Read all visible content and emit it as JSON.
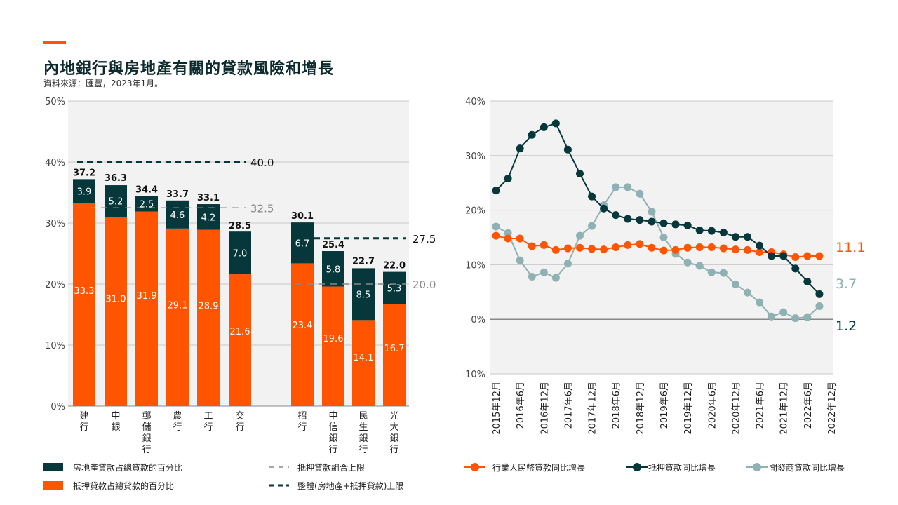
{
  "header": {
    "title": "內地銀行與房地產有關的貸款風險和增長",
    "source": "資料來源：匯豐，2023年1月。"
  },
  "colors": {
    "property_share": "#06373B",
    "mortgage_share": "#FF5500",
    "industry_loan_growth": "#FF5500",
    "mortgage_growth": "#06373B",
    "developer_loan_growth": "#8FB1B3",
    "grid": "#c8c8c8",
    "plot_bg": "#f2f2f2"
  },
  "chart_data": [
    {
      "type": "bar",
      "stacked": true,
      "ylim": [
        0,
        50
      ],
      "yticks": [
        "0%",
        "10%",
        "20%",
        "30%",
        "40%",
        "50%"
      ],
      "categories": [
        "建行",
        "中銀",
        "郵儲銀行",
        "農行",
        "工行",
        "交行",
        "招行",
        "中信銀行",
        "民生銀行",
        "光大銀行"
      ],
      "series": [
        {
          "name": "抵押貸款占總貸款的百分比",
          "values": [
            33.3,
            31.0,
            31.9,
            29.1,
            28.9,
            21.6,
            23.4,
            19.6,
            14.1,
            16.7
          ]
        },
        {
          "name": "房地產貸款占總貸款的百分比",
          "values": [
            3.9,
            5.2,
            2.5,
            4.6,
            4.2,
            7.0,
            6.7,
            5.8,
            8.5,
            5.3
          ]
        }
      ],
      "totals": [
        37.2,
        36.3,
        34.4,
        33.7,
        33.1,
        28.5,
        30.1,
        25.4,
        22.7,
        22.0
      ],
      "reference_lines": [
        {
          "name": "抵押貸款組合上限",
          "label": "32.5",
          "value": 32.5,
          "group": "large"
        },
        {
          "name": "整體(房地產+抵押貸款)上限",
          "label": "40.0",
          "value": 40.0,
          "group": "large"
        },
        {
          "name": "抵押貸款組合上限",
          "label": "20.0",
          "value": 20.0,
          "group": "mid"
        },
        {
          "name": "整體(房地產+抵押貸款)上限",
          "label": "27.5",
          "value": 27.5,
          "group": "mid"
        }
      ],
      "legend": [
        "房地產貸款占總貸款的百分比",
        "抵押貸款占總貸款的百分比",
        "抵押貸款組合上限",
        "整體(房地產+抵押貸款)上限"
      ]
    },
    {
      "type": "line",
      "ylim": [
        -10,
        40
      ],
      "yticks": [
        "-10%",
        "0%",
        "10%",
        "20%",
        "30%",
        "40%"
      ],
      "xticks": [
        "2015年12月",
        "2016年6月",
        "2016年12月",
        "2017年6月",
        "2017年12月",
        "2018年6月",
        "2018年12月",
        "2019年6月",
        "2019年12月",
        "2020年6月",
        "2020年12月",
        "2021年6月",
        "2021年12月",
        "2022年6月",
        "2022年12月"
      ],
      "x_points_per_tick": 2,
      "series": [
        {
          "name": "行業人民幣貸款同比增長",
          "end_label": "11.1",
          "values": [
            15.3,
            14.8,
            14.8,
            13.4,
            13.6,
            12.7,
            13.0,
            13.1,
            12.9,
            12.8,
            13.2,
            13.6,
            13.8,
            13.1,
            12.6,
            12.7,
            13.1,
            13.2,
            13.2,
            13.0,
            12.8,
            12.7,
            12.3,
            12.3,
            11.9,
            11.4,
            11.6,
            11.6
          ]
        },
        {
          "name": "抵押貸款同比增長",
          "end_label": "1.2",
          "values": [
            23.6,
            25.8,
            31.3,
            33.8,
            35.2,
            35.9,
            31.1,
            26.7,
            22.5,
            20.3,
            19.1,
            18.4,
            18.2,
            17.9,
            17.6,
            17.4,
            17.2,
            16.3,
            16.2,
            15.9,
            15.1,
            15.1,
            13.5,
            11.6,
            11.6,
            9.3,
            6.9,
            4.6
          ]
        },
        {
          "name": "開發商貸款同比增長",
          "end_label": "3.7",
          "values": [
            17.0,
            15.8,
            10.8,
            7.8,
            8.6,
            7.6,
            10.2,
            15.3,
            17.1,
            20.9,
            24.2,
            24.2,
            23.0,
            19.7,
            15.0,
            12.0,
            10.4,
            9.8,
            8.6,
            8.5,
            6.4,
            4.9,
            3.1,
            0.5,
            1.3,
            0.2,
            0.4,
            2.4
          ]
        }
      ],
      "legend": [
        "行業人民幣貸款同比增長",
        "抵押貸款同比增長",
        "開發商貸款同比增長"
      ]
    }
  ]
}
